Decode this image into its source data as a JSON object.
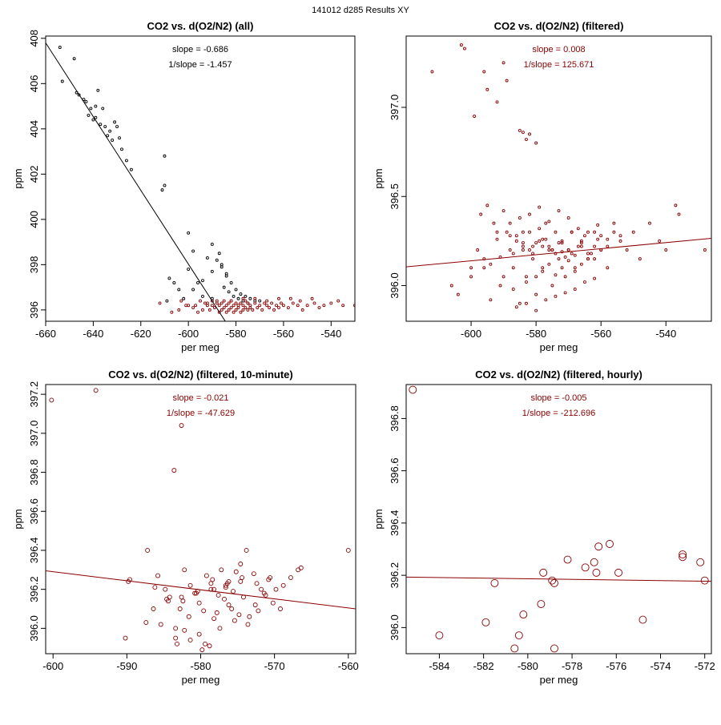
{
  "page_title": "141012   d285   Results XY",
  "colors": {
    "black": "#000000",
    "red": "#8b0000"
  },
  "chart_data": [
    {
      "type": "scatter",
      "title": "CO2 vs. d(O2/N2) (all)",
      "xlabel": "per meg",
      "ylabel": "ppm",
      "xlim": [
        -660,
        -530
      ],
      "ylim": [
        395.5,
        408.1
      ],
      "xticks": [
        -660,
        -640,
        -620,
        -600,
        -580,
        -560,
        -540
      ],
      "yticks": [
        396,
        398,
        400,
        402,
        404,
        406,
        408
      ],
      "annotations": [
        "slope = -0.686",
        "1/slope = -1.457"
      ],
      "fit_line": {
        "x": [
          -660,
          -584.5
        ],
        "y": [
          407.8,
          395.5
        ],
        "color": "#000000"
      },
      "point_radius": 1.5,
      "series": [
        {
          "name": "all",
          "color": "#000000",
          "x": [
            -654,
            -653,
            -648,
            -647,
            -646,
            -644,
            -643,
            -642,
            -641,
            -640,
            -639,
            -639,
            -638,
            -637,
            -636,
            -635,
            -634,
            -633,
            -632,
            -631,
            -630,
            -629,
            -628,
            -626,
            -624,
            -611,
            -610,
            -610,
            -609,
            -600,
            -598,
            -596,
            -594,
            -592,
            -590,
            -588,
            -586,
            -584,
            -582,
            -580,
            -578,
            -576,
            -574,
            -572,
            -570,
            -600,
            -598,
            -594,
            -590,
            -587,
            -585,
            -583,
            -581,
            -579,
            -577,
            -575,
            -590,
            -586,
            -584,
            -606,
            -602,
            -608,
            -604
          ],
          "y": [
            407.6,
            406.1,
            407.1,
            405.6,
            405.5,
            405.3,
            405.2,
            404.6,
            404.9,
            404.4,
            405.0,
            404.5,
            405.7,
            404.2,
            404.9,
            404.1,
            403.7,
            403.9,
            403.5,
            404.3,
            404.1,
            403.6,
            403.1,
            402.6,
            402.2,
            401.3,
            401.5,
            402.8,
            396.4,
            397.8,
            398.6,
            397.2,
            396.6,
            398.3,
            396.5,
            398.2,
            397.9,
            397.5,
            397.2,
            396.9,
            396.7,
            396.6,
            396.5,
            396.4,
            396.4,
            399.4,
            396.9,
            397.3,
            398.9,
            398.5,
            397.0,
            396.8,
            396.6,
            396.5,
            396.4,
            396.3,
            397.7,
            398.0,
            397.6,
            397.2,
            396.5,
            397.4,
            396.9
          ]
        },
        {
          "name": "filtered",
          "color": "#8b0000",
          "x": [
            -612,
            -607,
            -604,
            -600,
            -598,
            -596,
            -595,
            -594,
            -593,
            -592,
            -591,
            -590,
            -590,
            -589,
            -588,
            -587,
            -587,
            -586,
            -586,
            -585,
            -585,
            -584,
            -584,
            -583,
            -583,
            -582,
            -582,
            -581,
            -581,
            -580,
            -580,
            -579,
            -579,
            -578,
            -578,
            -577,
            -577,
            -576,
            -576,
            -575,
            -575,
            -574,
            -574,
            -573,
            -572,
            -571,
            -570,
            -569,
            -568,
            -567,
            -566,
            -565,
            -564,
            -563,
            -562,
            -561,
            -560,
            -558,
            -556,
            -554,
            -552,
            -550,
            -547,
            -545,
            -543,
            -540,
            -537,
            -535,
            -530,
            -548,
            -553,
            -557,
            -562,
            -567,
            -572,
            -577,
            -582,
            -588,
            -592,
            -597,
            -601,
            -603
          ],
          "y": [
            396.3,
            395.9,
            396.0,
            396.2,
            396.1,
            395.9,
            396.4,
            396.0,
            396.3,
            396.2,
            396.0,
            396.2,
            396.4,
            396.1,
            396.3,
            395.9,
            396.2,
            396.0,
            396.3,
            396.1,
            396.4,
            395.9,
            396.2,
            396.0,
            396.3,
            396.1,
            396.4,
            395.9,
            396.2,
            396.0,
            396.3,
            396.1,
            396.2,
            395.9,
            396.3,
            396.0,
            396.2,
            396.1,
            396.4,
            396.0,
            396.3,
            396.1,
            396.2,
            396.0,
            396.3,
            396.1,
            396.2,
            396.0,
            396.3,
            396.2,
            396.1,
            396.3,
            396.0,
            396.2,
            396.1,
            396.3,
            396.2,
            396.1,
            396.3,
            396.2,
            396.0,
            396.2,
            396.3,
            396.1,
            396.2,
            396.3,
            396.4,
            396.2,
            396.2,
            396.5,
            396.4,
            396.5,
            396.5,
            396.4,
            396.5,
            396.5,
            396.4,
            396.4,
            396.3,
            396.2,
            396.2,
            396.4
          ]
        }
      ]
    },
    {
      "type": "scatter",
      "title": "CO2 vs. d(O2/N2) (filtered)",
      "xlabel": "per meg",
      "ylabel": "ppm",
      "xlim": [
        -620,
        -526
      ],
      "ylim": [
        395.8,
        397.4
      ],
      "xticks": [
        -600,
        -580,
        -560,
        -540
      ],
      "yticks": [
        396.0,
        396.5,
        397.0
      ],
      "ytick_labels": [
        "396.0",
        "396.5",
        "397.0"
      ],
      "annotations": [
        "slope = 0.008",
        "1/slope = 125.671"
      ],
      "fit_line": {
        "x": [
          -620,
          -526
        ],
        "y": [
          396.105,
          396.265
        ],
        "color": "#8b0000"
      },
      "point_radius": 1.5,
      "series": [
        {
          "name": "filtered",
          "color": "#8b0000",
          "x": [
            -603,
            -602,
            -596,
            -595,
            -590,
            -589,
            -585,
            -584,
            -582,
            -580,
            -599,
            -592,
            -583,
            -612,
            -606,
            -604,
            -600,
            -598,
            -596,
            -594,
            -592,
            -590,
            -588,
            -587,
            -586,
            -585,
            -584,
            -583,
            -582,
            -581,
            -580,
            -579,
            -578,
            -577,
            -576,
            -575,
            -574,
            -573,
            -572,
            -571,
            -570,
            -569,
            -568,
            -566,
            -564,
            -562,
            -560,
            -558,
            -556,
            -554,
            -552,
            -550,
            -548,
            -545,
            -542,
            -540,
            -537,
            -536,
            -528,
            -597,
            -593,
            -589,
            -586,
            -584,
            -581,
            -579,
            -577,
            -575,
            -573,
            -571,
            -569,
            -567,
            -565,
            -563,
            -561,
            -591,
            -587,
            -583,
            -580,
            -578,
            -576,
            -574,
            -572,
            -570,
            -568,
            -566,
            -564,
            -562,
            -560,
            -558,
            -595,
            -590,
            -585,
            -582,
            -579,
            -576,
            -573,
            -570,
            -567,
            -564,
            -561,
            -586,
            -583,
            -580,
            -577,
            -574,
            -571,
            -568,
            -565,
            -562,
            -588,
            -584,
            -581,
            -578,
            -575,
            -572,
            -569,
            -566,
            -594,
            -591,
            -587,
            -582,
            -578,
            -574,
            -570,
            -566,
            -562,
            -558,
            -554,
            -600,
            -596,
            -592,
            -588,
            -584,
            -580,
            -576,
            -572,
            -568,
            -564,
            -560,
            -556
          ],
          "y": [
            397.35,
            397.33,
            397.2,
            397.1,
            397.25,
            397.15,
            396.87,
            396.86,
            396.85,
            396.8,
            396.95,
            397.03,
            396.82,
            397.2,
            396.0,
            395.95,
            396.1,
            396.2,
            396.15,
            395.92,
            396.3,
            396.05,
            396.35,
            396.1,
            396.25,
            395.9,
            396.2,
            396.05,
            396.3,
            396.15,
            395.95,
            396.25,
            396.1,
            396.35,
            396.2,
            396.0,
            396.3,
            396.15,
            396.25,
            396.05,
            396.2,
            396.3,
            396.1,
            396.25,
            396.15,
            396.3,
            396.2,
            396.1,
            396.35,
            396.25,
            396.2,
            396.3,
            396.15,
            396.35,
            396.25,
            396.2,
            396.45,
            396.4,
            396.2,
            396.4,
            396.35,
            396.3,
            396.28,
            396.22,
            396.18,
            396.32,
            396.26,
            396.2,
            396.24,
            396.16,
            396.3,
            396.22,
            396.28,
            396.18,
            396.26,
            396.0,
            395.98,
            396.02,
            396.05,
            396.08,
            396.12,
            396.06,
            396.1,
            396.14,
            396.08,
            396.12,
            396.18,
            396.15,
            396.2,
            396.22,
            396.45,
            396.42,
            396.38,
            396.4,
            396.44,
            396.36,
            396.42,
            396.38,
            396.32,
            396.3,
            396.34,
            395.88,
            395.9,
            395.86,
            395.92,
            395.94,
            395.96,
            395.98,
            396.02,
            396.04,
            396.2,
            396.24,
            396.22,
            396.26,
            396.2,
            396.24,
            396.18,
            396.22,
            396.12,
            396.16,
            396.18,
            396.2,
            396.22,
            396.18,
            396.2,
            396.24,
            396.22,
            396.26,
            396.28,
            396.05,
            396.1,
            396.26,
            396.28,
            396.3,
            396.24,
            396.22,
            396.19,
            396.17,
            396.15,
            396.28,
            396.3
          ]
        }
      ]
    },
    {
      "type": "scatter",
      "title": "CO2 vs. d(O2/N2) (filtered, 10-minute)",
      "xlabel": "per meg",
      "ylabel": "ppm",
      "xlim": [
        -601,
        -559
      ],
      "ylim": [
        395.87,
        397.25
      ],
      "xticks": [
        -600,
        -590,
        -580,
        -570,
        -560
      ],
      "yticks": [
        396.0,
        396.2,
        396.4,
        396.6,
        396.8,
        397.0,
        397.2
      ],
      "ytick_labels": [
        "396.0",
        "396.2",
        "396.4",
        "396.6",
        "396.8",
        "397.0",
        "397.2"
      ],
      "annotations": [
        "slope = -0.021",
        "1/slope = -47.629"
      ],
      "fit_line": {
        "x": [
          -601,
          -559
        ],
        "y": [
          396.295,
          396.1
        ],
        "color": "#8b0000"
      },
      "point_radius": 2.5,
      "series": [
        {
          "name": "10-minute means",
          "color": "#8b0000",
          "x": [
            -600.2,
            -594.2,
            -582.6,
            -583.6,
            -560,
            -589.8,
            -590.2,
            -589.6,
            -587.2,
            -586.4,
            -584.8,
            -584.2,
            -583.4,
            -582.8,
            -582.2,
            -581.4,
            -580.8,
            -580.2,
            -579.6,
            -579.2,
            -578.6,
            -578.2,
            -577.6,
            -577.2,
            -576.6,
            -576.2,
            -575.6,
            -575.2,
            -574.6,
            -573.8,
            -572.8,
            -571.8,
            -570.8,
            -569.8,
            -568.8,
            -567.8,
            -566.8,
            -566.4,
            -569.2,
            -571.4,
            -573.4,
            -575.4,
            -577.4,
            -579.4,
            -581.4,
            -583.4,
            -585.4,
            -587.4,
            -584.6,
            -582.6,
            -580.6,
            -578.6,
            -576.6,
            -574.6,
            -572.6,
            -570.6,
            -582.2,
            -580.2,
            -578.2,
            -576.2,
            -574.2,
            -572.2,
            -584.4,
            -583.2,
            -581.6,
            -579.8,
            -578.8,
            -577.8,
            -576.8,
            -575.8,
            -574.8,
            -573.6,
            -572.4,
            -571.2,
            -570.2,
            -586.2,
            -585.8,
            -582.4,
            -580.4,
            -578.4,
            -576.4,
            -574.4
          ],
          "y": [
            397.17,
            397.22,
            397.04,
            396.81,
            396.4,
            396.24,
            395.95,
            396.25,
            396.4,
            396.1,
            396.2,
            396.16,
            396.0,
            396.1,
            396.3,
            396.22,
            396.18,
            396.13,
            396.09,
            396.27,
            396.23,
            396.2,
            396.17,
            396.3,
            396.21,
            396.24,
            396.19,
            396.29,
            396.33,
            396.4,
            396.28,
            396.2,
            396.25,
            396.2,
            396.22,
            396.26,
            396.3,
            396.31,
            396.1,
            396.18,
            396.06,
            396.04,
            396.0,
            395.92,
            395.94,
            395.95,
            396.02,
            396.03,
            396.15,
            396.16,
            396.18,
            396.2,
            396.22,
            396.24,
            396.12,
            396.26,
            395.99,
            395.97,
            396.05,
            396.12,
            396.16,
            396.09,
            396.14,
            395.92,
            396.06,
            395.89,
            395.91,
            396.08,
            396.15,
            396.1,
            396.07,
            396.02,
            396.23,
            396.17,
            396.13,
            396.21,
            396.27,
            396.14,
            396.19,
            396.25,
            396.23,
            396.26
          ]
        }
      ]
    },
    {
      "type": "scatter",
      "title": "CO2 vs. d(O2/N2) (filtered, hourly)",
      "xlabel": "per meg",
      "ylabel": "ppm",
      "xlim": [
        -585.5,
        -571.7
      ],
      "ylim": [
        395.9,
        396.93
      ],
      "xticks": [
        -584,
        -582,
        -580,
        -578,
        -576,
        -574,
        -572
      ],
      "yticks": [
        396.0,
        396.2,
        396.4,
        396.6,
        396.8
      ],
      "ytick_labels": [
        "396.0",
        "396.2",
        "396.4",
        "396.6",
        "396.8"
      ],
      "annotations": [
        "slope = -0.005",
        "1/slope = -212.696"
      ],
      "fit_line": {
        "x": [
          -585.5,
          -571.7
        ],
        "y": [
          396.193,
          396.177
        ],
        "color": "#8b0000"
      },
      "point_radius": 4.5,
      "series": [
        {
          "name": "hourly means",
          "color": "#8b0000",
          "x": [
            -585.2,
            -584.0,
            -581.9,
            -581.5,
            -580.6,
            -580.4,
            -580.2,
            -579.4,
            -579.3,
            -578.9,
            -578.8,
            -578.8,
            -578.2,
            -577.4,
            -577.0,
            -576.9,
            -576.8,
            -576.3,
            -575.9,
            -574.8,
            -573.0,
            -573.0,
            -572.2,
            -572.0
          ],
          "y": [
            396.91,
            395.97,
            396.02,
            396.17,
            395.92,
            395.97,
            396.05,
            396.09,
            396.21,
            396.18,
            396.17,
            395.92,
            396.26,
            396.23,
            396.25,
            396.21,
            396.31,
            396.32,
            396.21,
            396.03,
            396.28,
            396.27,
            396.25,
            396.18
          ]
        }
      ]
    }
  ]
}
